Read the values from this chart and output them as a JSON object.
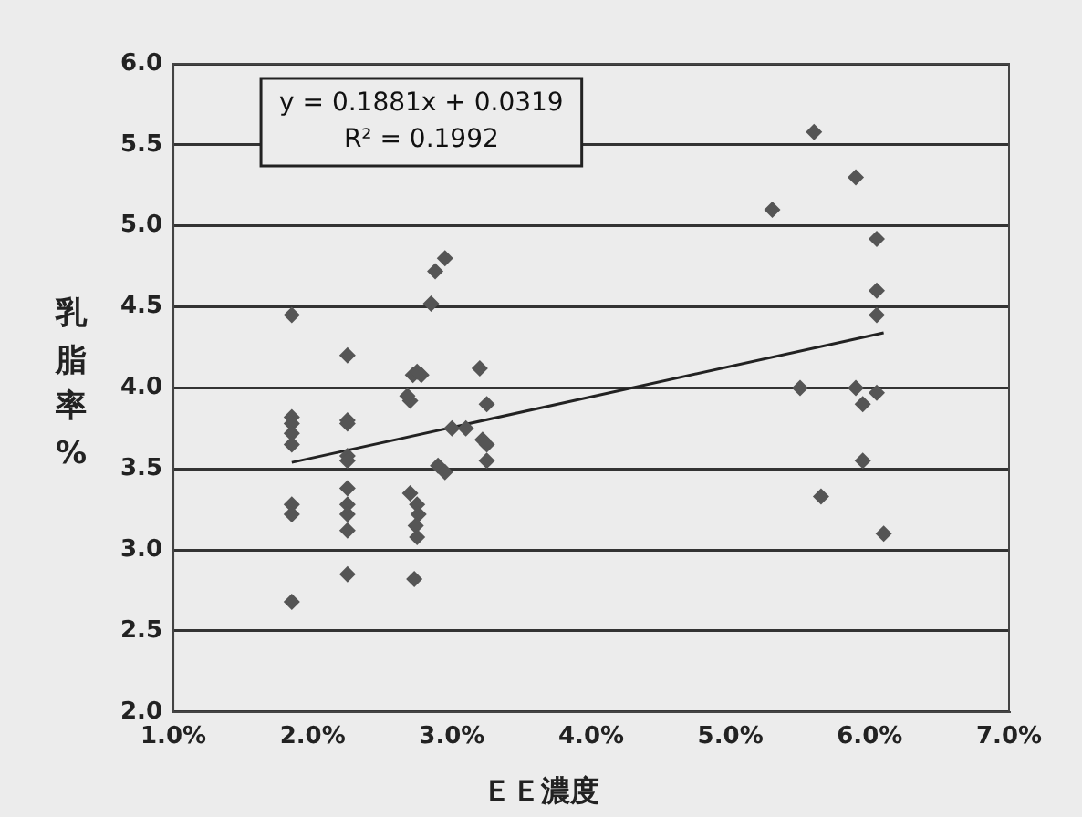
{
  "chart_data": {
    "type": "scatter",
    "xlabel": "ＥＥ濃度",
    "ylabel": "乳脂率%",
    "annotations": [
      "y = 0.1881x + 0.0319",
      "R² = 0.1992"
    ],
    "xlim": [
      1,
      7
    ],
    "xticks": [
      {
        "value": 1,
        "label": "1.0%"
      },
      {
        "value": 2,
        "label": "2.0%"
      },
      {
        "value": 3,
        "label": "3.0%"
      },
      {
        "value": 4,
        "label": "4.0%"
      },
      {
        "value": 5,
        "label": "5.0%"
      },
      {
        "value": 6,
        "label": "6.0%"
      },
      {
        "value": 7,
        "label": "7.0%"
      }
    ],
    "ylim": [
      2,
      6
    ],
    "yticks": [
      {
        "value": 2,
        "label": "2.0"
      },
      {
        "value": 2.5,
        "label": "2.5"
      },
      {
        "value": 3,
        "label": "3.0"
      },
      {
        "value": 3.5,
        "label": "3.5"
      },
      {
        "value": 4,
        "label": "4.0"
      },
      {
        "value": 4.5,
        "label": "4.5"
      },
      {
        "value": 5,
        "label": "5.0"
      },
      {
        "value": 5.5,
        "label": "5.5"
      },
      {
        "value": 6,
        "label": "6.0"
      }
    ],
    "grid": "y",
    "marker": "diamond",
    "legend": false,
    "series": [
      {
        "type": "scatter",
        "color": "#555555",
        "x": [
          1.85,
          1.85,
          1.85,
          1.85,
          1.85,
          1.85,
          1.85,
          1.85,
          2.25,
          2.25,
          2.25,
          2.25,
          2.25,
          2.25,
          2.25,
          2.25,
          2.25,
          2.25,
          2.7,
          2.68,
          2.72,
          2.75,
          2.78,
          2.7,
          2.75,
          2.76,
          2.74,
          2.75,
          2.73,
          2.85,
          2.88,
          2.95,
          2.9,
          2.95,
          3.0,
          3.2,
          3.25,
          3.22,
          3.25,
          3.25,
          3.1,
          5.3,
          5.6,
          5.5,
          5.65,
          5.9,
          6.05,
          6.05,
          6.05,
          6.05,
          5.9,
          5.95,
          5.95,
          6.1
        ],
        "values": [
          4.45,
          3.82,
          3.78,
          3.72,
          3.65,
          3.28,
          3.22,
          2.68,
          4.2,
          3.8,
          3.78,
          3.58,
          3.55,
          3.38,
          3.28,
          3.22,
          3.12,
          2.85,
          3.92,
          3.95,
          4.08,
          4.1,
          4.08,
          3.35,
          3.28,
          3.22,
          3.15,
          3.08,
          2.82,
          4.52,
          4.72,
          4.8,
          3.52,
          3.48,
          3.75,
          4.12,
          3.9,
          3.68,
          3.65,
          3.55,
          3.75,
          5.1,
          5.58,
          4.0,
          3.33,
          5.3,
          4.92,
          4.6,
          4.45,
          3.97,
          4.0,
          3.9,
          3.55,
          3.1
        ]
      },
      {
        "type": "line",
        "color": "#222222",
        "marker": "none",
        "x": [
          1.85,
          6.1
        ],
        "values": [
          3.54,
          4.34
        ]
      }
    ]
  }
}
